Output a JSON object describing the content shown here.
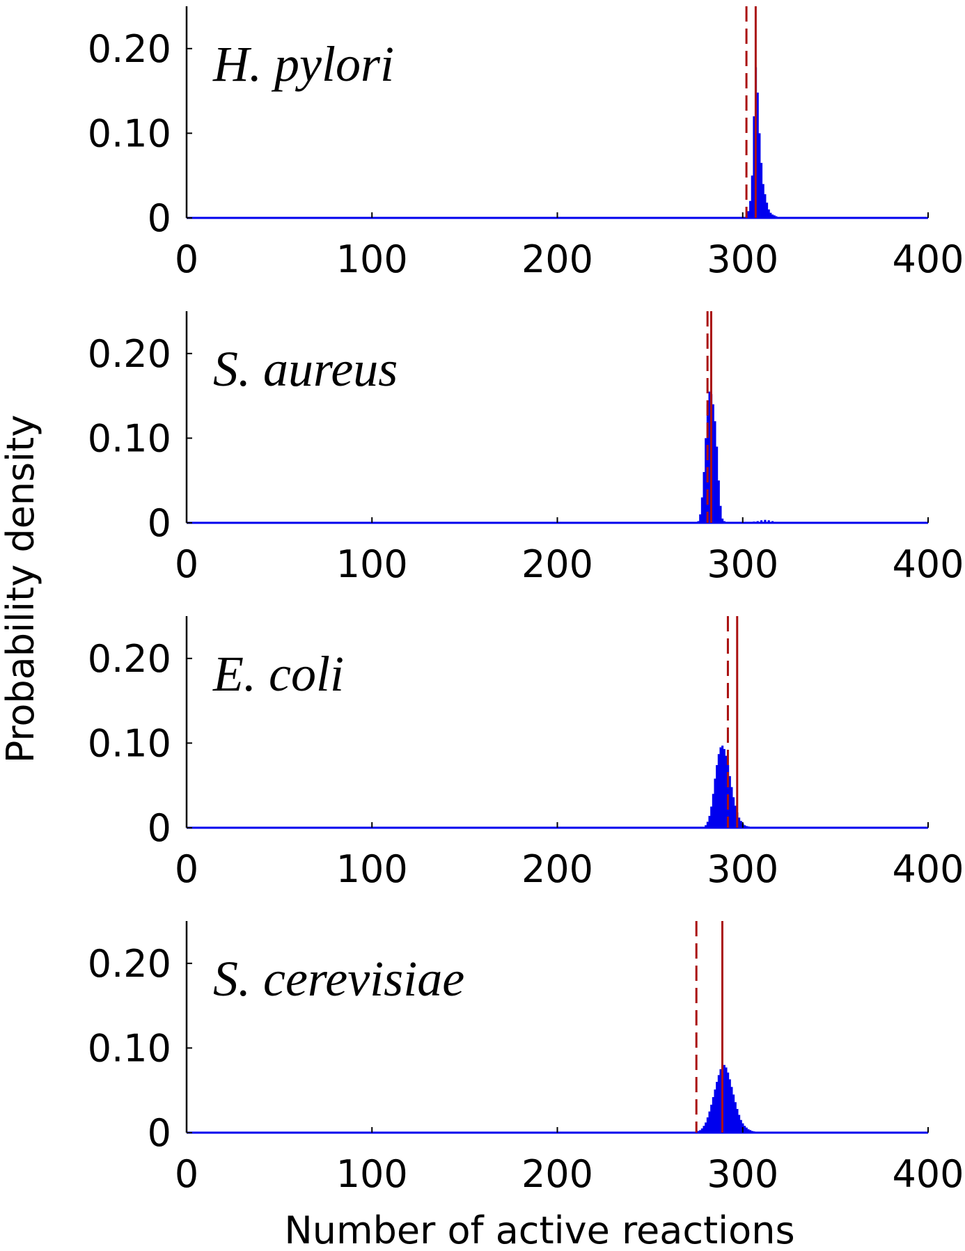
{
  "chart_data": {
    "type": "bar",
    "xlabel": "Number of active reactions",
    "ylabel": "Probability density",
    "xlim": [
      0,
      400
    ],
    "ylim": [
      0,
      0.25
    ],
    "xticks": [
      0,
      100,
      200,
      300,
      400
    ],
    "yticks": [
      0,
      0.1,
      0.2
    ],
    "xtick_labels": [
      "0",
      "100",
      "200",
      "300",
      "400"
    ],
    "ytick_labels": [
      "0",
      "0.10",
      "0.20"
    ],
    "colors": {
      "histogram": "#0000ee",
      "marker_line": "#aa1111",
      "axis": "#000000"
    },
    "panels": [
      {
        "label": "H. pylori",
        "dashed_line_x": 302,
        "solid_line_x": 307,
        "x": [
          301,
          302,
          303,
          304,
          305,
          306,
          307,
          308,
          309,
          310,
          311,
          312,
          313,
          314,
          315,
          316,
          317,
          318,
          319,
          320,
          321,
          322
        ],
        "values": [
          0.001,
          0.003,
          0.008,
          0.02,
          0.05,
          0.12,
          0.178,
          0.148,
          0.1,
          0.065,
          0.04,
          0.028,
          0.018,
          0.01,
          0.006,
          0.004,
          0.003,
          0.002,
          0.001,
          0.001,
          0.0005,
          0.0003
        ]
      },
      {
        "label": "S. aureus",
        "dashed_line_x": 281,
        "solid_line_x": 283,
        "x": [
          276,
          277,
          278,
          279,
          280,
          281,
          282,
          283,
          284,
          285,
          286,
          287,
          288,
          289,
          290,
          291,
          300,
          302,
          304,
          306,
          308,
          310,
          312,
          314,
          316,
          318,
          320
        ],
        "values": [
          0.002,
          0.01,
          0.03,
          0.06,
          0.1,
          0.14,
          0.155,
          0.152,
          0.14,
          0.12,
          0.09,
          0.05,
          0.02,
          0.005,
          0.002,
          0.001,
          0.0003,
          0.0006,
          0.001,
          0.0015,
          0.002,
          0.003,
          0.0035,
          0.003,
          0.002,
          0.001,
          0.0005
        ]
      },
      {
        "label": "E. coli",
        "dashed_line_x": 292,
        "solid_line_x": 297,
        "x": [
          278,
          279,
          280,
          281,
          282,
          283,
          284,
          285,
          286,
          287,
          288,
          289,
          290,
          291,
          292,
          293,
          294,
          295,
          296,
          297,
          298,
          299,
          300,
          301,
          302,
          303,
          304,
          305,
          306,
          307,
          308,
          309,
          310
        ],
        "values": [
          0.0005,
          0.001,
          0.003,
          0.007,
          0.014,
          0.025,
          0.04,
          0.058,
          0.074,
          0.087,
          0.095,
          0.097,
          0.093,
          0.085,
          0.074,
          0.061,
          0.048,
          0.036,
          0.026,
          0.018,
          0.012,
          0.008,
          0.005,
          0.003,
          0.002,
          0.0015,
          0.001,
          0.0007,
          0.0005,
          0.0003,
          0.0002,
          0.0001,
          0.0001
        ]
      },
      {
        "label": "S. cerevisiae",
        "dashed_line_x": 275,
        "solid_line_x": 289,
        "x": [
          274,
          275,
          276,
          277,
          278,
          279,
          280,
          281,
          282,
          283,
          284,
          285,
          286,
          287,
          288,
          289,
          290,
          291,
          292,
          293,
          294,
          295,
          296,
          297,
          298,
          299,
          300,
          301,
          302,
          303,
          304,
          305,
          306,
          307,
          308,
          309,
          310,
          311,
          312,
          313,
          314,
          315
        ],
        "values": [
          0.0005,
          0.001,
          0.002,
          0.003,
          0.005,
          0.008,
          0.012,
          0.018,
          0.025,
          0.033,
          0.042,
          0.051,
          0.06,
          0.068,
          0.075,
          0.079,
          0.08,
          0.077,
          0.071,
          0.063,
          0.054,
          0.045,
          0.036,
          0.028,
          0.021,
          0.015,
          0.011,
          0.008,
          0.006,
          0.004,
          0.003,
          0.002,
          0.0015,
          0.001,
          0.0008,
          0.0006,
          0.0005,
          0.0004,
          0.0003,
          0.0002,
          0.0002,
          0.0001
        ]
      }
    ]
  }
}
